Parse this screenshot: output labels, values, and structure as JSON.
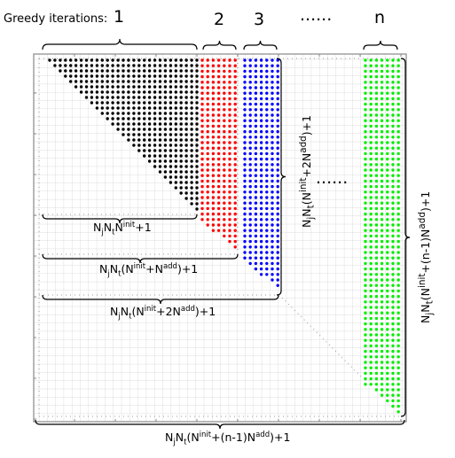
{
  "header": {
    "title": "Greedy iterations:",
    "iterations": [
      "1",
      "2",
      "3",
      "......",
      "n"
    ]
  },
  "labels": {
    "f1_base": "N",
    "f1_sub1": "j",
    "f1_mid": "N",
    "f1_sub2": "t",
    "f1_n": "N",
    "f1_sup": "init",
    "f1_tail": "+1",
    "f2_open": "(N",
    "f2_sup1": "init",
    "f2_plus": "+N",
    "f2_sup2": "add",
    "f2_tail": ")+1",
    "f3_plus": "+2N",
    "f4_plus": "+(n-1)N",
    "middle_dots": "......"
  },
  "colors": {
    "iteration_1": "#000000",
    "iteration_2": "#ff0000",
    "iteration_3": "#0000ff",
    "iteration_n": "#00ee00",
    "grid": "#dddddd"
  }
}
